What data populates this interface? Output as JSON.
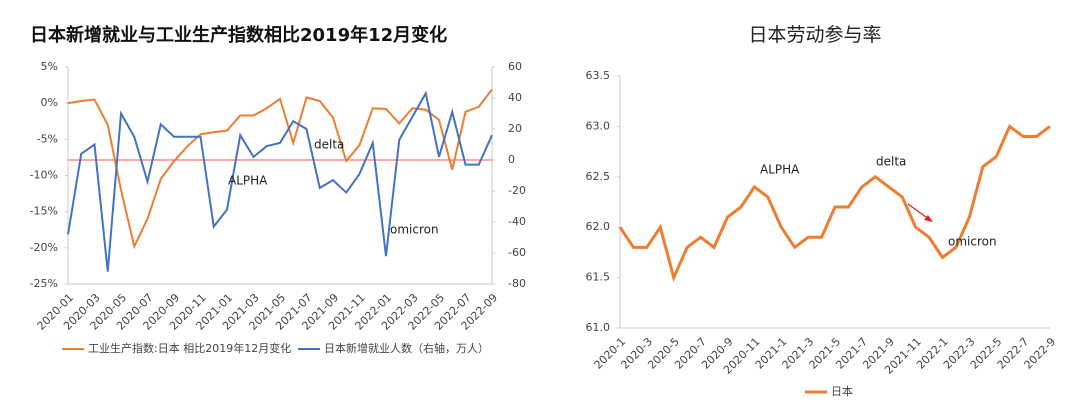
{
  "chart_data": [
    {
      "type": "line",
      "title": "日本新增就业与工业生产指数相比2019年12月变化",
      "categories": [
        "2020-01",
        null,
        "2020-03",
        null,
        "2020-05",
        null,
        "2020-07",
        null,
        "2020-09",
        null,
        "2020-11",
        null,
        "2021-01",
        null,
        "2021-03",
        null,
        "2021-05",
        null,
        "2021-07",
        null,
        "2021-09",
        null,
        "2021-11",
        null,
        "2022-01",
        null,
        "2022-03",
        null,
        "2022-05",
        null,
        "2022-07",
        null,
        "2022-09"
      ],
      "series": [
        {
          "name": "工业生产指数:日本 相比2019年12月变化",
          "color": "#ed7d31",
          "values": [
            0,
            0.3,
            0.5,
            -3,
            -12,
            -19.8,
            -16,
            -10.5,
            -8,
            -6,
            -4.3,
            -4,
            -3.8,
            -1.7,
            -1.7,
            -0.7,
            0.6,
            -5.5,
            0.8,
            0.3,
            -2,
            -8,
            -5.8,
            -0.7,
            -0.8,
            -2.8,
            -0.7,
            -0.9,
            -2.3,
            -9.2,
            -1.2,
            -0.5,
            1.9
          ]
        },
        {
          "name": "日本新增就业人数（右轴，万人）",
          "color": "#4472c4",
          "axis": "y2",
          "values": [
            -48,
            4,
            10,
            -72,
            30,
            15,
            -14,
            23,
            15,
            15,
            15,
            -43,
            -32,
            16,
            2,
            9,
            11,
            25,
            20,
            -18,
            -13,
            -21,
            -9,
            11,
            -62,
            13,
            28,
            43,
            2,
            31,
            -3,
            -3,
            16
          ]
        }
      ],
      "ylim": [
        -25,
        5
      ],
      "yticks": [
        {
          "value": 5,
          "label": "5%"
        },
        {
          "value": 0,
          "label": "0%"
        },
        {
          "value": -5,
          "label": "-5%"
        },
        {
          "value": -10,
          "label": "-10%"
        },
        {
          "value": -15,
          "label": "-15%"
        },
        {
          "value": -20,
          "label": "-20%"
        },
        {
          "value": -25,
          "label": "-25%"
        }
      ],
      "y2lim": [
        -80,
        60
      ],
      "y2ticks": [
        60,
        40,
        20,
        0,
        -20,
        -40,
        -60,
        -80
      ],
      "y2_baseline_color": "#ff4d4d",
      "annotations": [
        "ALPHA",
        "delta",
        "omicron"
      ],
      "legend": "bottom"
    },
    {
      "type": "line",
      "title": "日本劳动参与率",
      "categories": [
        "2020-1",
        null,
        "2020-3",
        null,
        "2020-5",
        null,
        "2020-7",
        null,
        "2020-9",
        null,
        "2020-11",
        null,
        "2021-1",
        null,
        "2021-3",
        null,
        "2021-5",
        null,
        "2021-7",
        null,
        "2021-9",
        null,
        "2021-11",
        null,
        "2022-1",
        null,
        "2022-3",
        null,
        "2022-5",
        null,
        "2022-7",
        null,
        "2022-9"
      ],
      "series": [
        {
          "name": "日本",
          "color": "#ed7d31",
          "values": [
            62.0,
            61.8,
            61.8,
            62.0,
            61.5,
            61.8,
            61.9,
            61.8,
            62.1,
            62.2,
            62.4,
            62.3,
            62.0,
            61.8,
            61.9,
            61.9,
            62.2,
            62.2,
            62.4,
            62.5,
            62.4,
            62.3,
            62.0,
            61.9,
            61.7,
            61.8,
            62.1,
            62.6,
            62.7,
            63.0,
            62.9,
            62.9,
            63.0
          ]
        }
      ],
      "ylim": [
        61.0,
        63.5
      ],
      "yticks": [
        63.5,
        {
          "value": 63,
          "label": "63.0"
        },
        62.5,
        {
          "value": 62,
          "label": "62.0"
        },
        61.5,
        {
          "value": 61,
          "label": "61.0"
        }
      ],
      "annotations": [
        "ALPHA",
        "delta",
        "omicron"
      ],
      "legend": "bottom"
    }
  ]
}
